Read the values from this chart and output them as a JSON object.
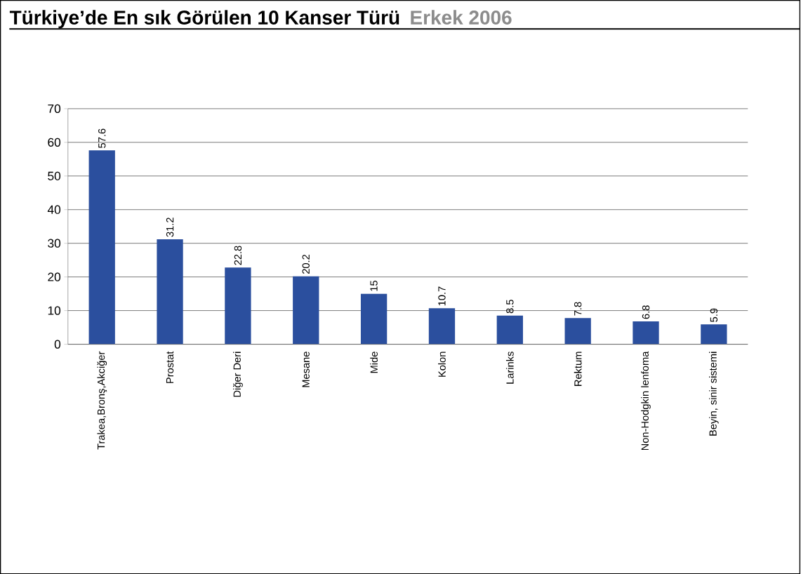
{
  "chart_data": {
    "type": "bar",
    "title": "Türkiye’de En sık Görülen 10 Kanser Türü",
    "subtitle": "Erkek 2006",
    "categories": [
      "Trakea,Bronş,Akciğer",
      "Prostat",
      "Diğer Deri",
      "Mesane",
      "Mide",
      "Kolon",
      "Larinks",
      "Rektum",
      "Non-Hodgkin lenfoma",
      "Beyin, sinir sistemi"
    ],
    "values": [
      57.6,
      31.2,
      22.8,
      20.2,
      15,
      10.7,
      8.5,
      7.8,
      6.8,
      5.9
    ],
    "color": "#2b4f9e",
    "ylim": [
      0,
      70
    ],
    "yticks": [
      0,
      10,
      20,
      30,
      40,
      50,
      60,
      70
    ],
    "grid": "y",
    "data_labels": true
  }
}
